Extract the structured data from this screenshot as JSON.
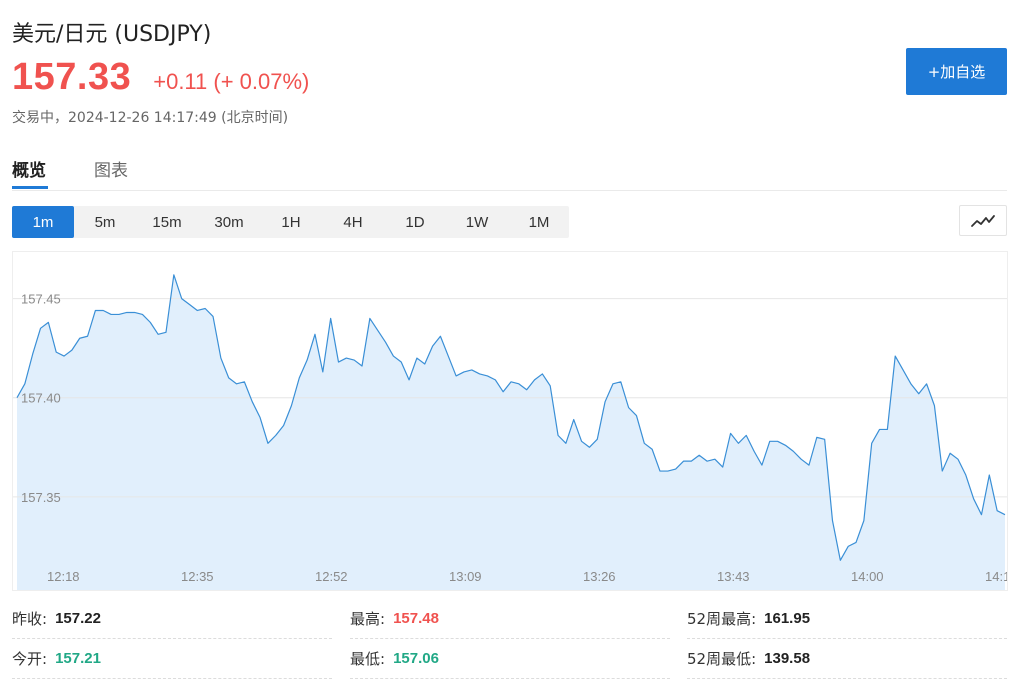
{
  "header": {
    "title": "美元/日元 (USDJPY)",
    "price": "157.33",
    "change": "+0.11 (+ 0.07%)",
    "status": "交易中，2024-12-26 14:17:49 (北京时间)",
    "add_button": "+加自选"
  },
  "tabs": [
    {
      "label": "概览",
      "active": true
    },
    {
      "label": "图表",
      "active": false
    }
  ],
  "intervals": [
    "1m",
    "5m",
    "15m",
    "30m",
    "1H",
    "4H",
    "1D",
    "1W",
    "1M"
  ],
  "active_interval": "1m",
  "chart_type_icon": "line-chart-icon",
  "colors": {
    "up": "#f0524f",
    "down": "#21a886",
    "accent": "#1f7ad6",
    "line": "#3a8fd6",
    "area": "#e1effc"
  },
  "stats": [
    {
      "label": "昨收:",
      "value": "157.22",
      "tone": "neutral"
    },
    {
      "label": "最高:",
      "value": "157.48",
      "tone": "up"
    },
    {
      "label": "52周最高:",
      "value": "161.95",
      "tone": "neutral"
    },
    {
      "label": "今开:",
      "value": "157.21",
      "tone": "down"
    },
    {
      "label": "最低:",
      "value": "157.06",
      "tone": "down"
    },
    {
      "label": "52周最低:",
      "value": "139.58",
      "tone": "neutral"
    }
  ],
  "chart_data": {
    "type": "area",
    "x_ticks": [
      "12:18",
      "12:35",
      "12:52",
      "13:09",
      "13:26",
      "13:43",
      "14:00",
      "14:1"
    ],
    "y_ticks": [
      157.35,
      157.4,
      157.45
    ],
    "ylim": [
      157.302,
      157.4735
    ],
    "grid": true,
    "series": [
      {
        "values": [
          157.4,
          157.407,
          157.422,
          157.435,
          157.438,
          157.423,
          157.421,
          157.424,
          157.43,
          157.431,
          157.444,
          157.444,
          157.442,
          157.442,
          157.443,
          157.443,
          157.442,
          157.438,
          157.432,
          157.433,
          157.462,
          157.45,
          157.447,
          157.444,
          157.445,
          157.441,
          157.42,
          157.41,
          157.407,
          157.408,
          157.398,
          157.39,
          157.377,
          157.381,
          157.386,
          157.396,
          157.41,
          157.419,
          157.432,
          157.413,
          157.44,
          157.418,
          157.42,
          157.419,
          157.416,
          157.44,
          157.434,
          157.428,
          157.421,
          157.418,
          157.409,
          157.42,
          157.417,
          157.426,
          157.431,
          157.421,
          157.411,
          157.413,
          157.414,
          157.412,
          157.411,
          157.409,
          157.403,
          157.408,
          157.407,
          157.404,
          157.409,
          157.412,
          157.406,
          157.381,
          157.377,
          157.389,
          157.378,
          157.375,
          157.379,
          157.398,
          157.407,
          157.408,
          157.395,
          157.391,
          157.377,
          157.374,
          157.363,
          157.363,
          157.364,
          157.368,
          157.368,
          157.371,
          157.368,
          157.369,
          157.365,
          157.382,
          157.377,
          157.381,
          157.373,
          157.366,
          157.378,
          157.378,
          157.376,
          157.373,
          157.369,
          157.366,
          157.38,
          157.379,
          157.338,
          157.318,
          157.325,
          157.327,
          157.338,
          157.377,
          157.384,
          157.384,
          157.421,
          157.414,
          157.407,
          157.402,
          157.407,
          157.396,
          157.363,
          157.372,
          157.369,
          157.361,
          157.349,
          157.341,
          157.361,
          157.343,
          157.341
        ]
      }
    ]
  }
}
